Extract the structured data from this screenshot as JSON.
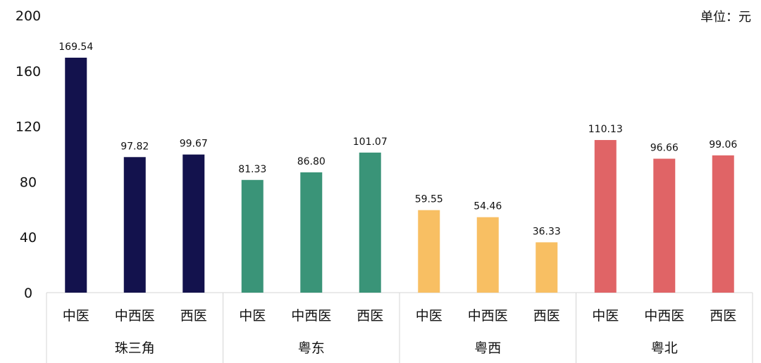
{
  "unit_label": "单位：元",
  "chart_data": {
    "type": "bar",
    "ylim": [
      0,
      200
    ],
    "y_ticks": [
      0,
      40,
      80,
      120,
      160,
      200
    ],
    "grid": false,
    "groups": [
      {
        "name": "珠三角",
        "color": "#13124d",
        "categories": [
          "中医",
          "中西医",
          "西医"
        ],
        "values": [
          169.54,
          97.82,
          99.67
        ],
        "labels": [
          "169.54",
          "97.82",
          "99.67"
        ]
      },
      {
        "name": "粤东",
        "color": "#3a9478",
        "categories": [
          "中医",
          "中西医",
          "西医"
        ],
        "values": [
          81.33,
          86.8,
          101.07
        ],
        "labels": [
          "81.33",
          "86.80",
          "101.07"
        ]
      },
      {
        "name": "粤西",
        "color": "#f8bf63",
        "categories": [
          "中医",
          "中西医",
          "西医"
        ],
        "values": [
          59.55,
          54.46,
          36.33
        ],
        "labels": [
          "59.55",
          "54.46",
          "36.33"
        ]
      },
      {
        "name": "粤北",
        "color": "#e06466",
        "categories": [
          "中医",
          "中西医",
          "西医"
        ],
        "values": [
          110.13,
          96.66,
          99.06
        ],
        "labels": [
          "110.13",
          "96.66",
          "99.06"
        ]
      }
    ]
  }
}
